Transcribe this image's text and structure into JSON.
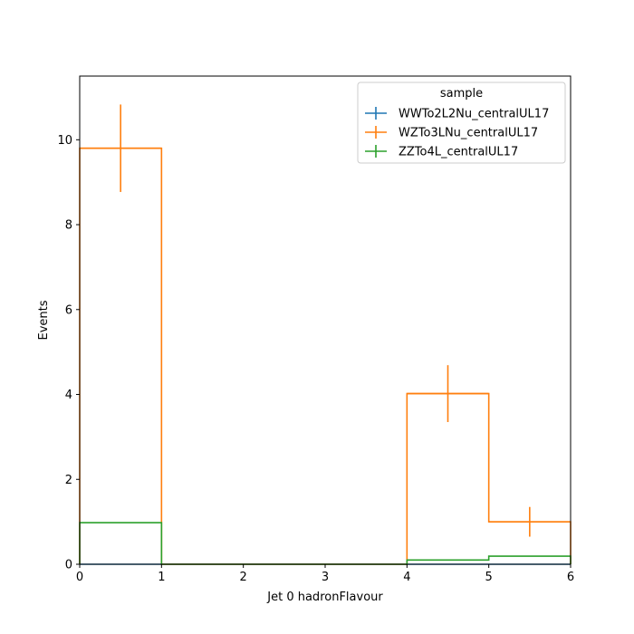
{
  "chart_data": {
    "type": "histogram",
    "title": "",
    "xlabel": "Jet 0 hadronFlavour",
    "ylabel": "Events",
    "xlim": [
      0,
      6
    ],
    "ylim": [
      0,
      11.5
    ],
    "xticks": [
      0,
      1,
      2,
      3,
      4,
      5,
      6
    ],
    "yticks": [
      0,
      2,
      4,
      6,
      8,
      10
    ],
    "bin_edges": [
      0,
      1,
      2,
      3,
      4,
      5,
      6
    ],
    "grid": false,
    "legend": {
      "title": "sample",
      "placement": "top-right"
    },
    "series": [
      {
        "name": "WWTo2L2Nu_centralUL17",
        "color": "#1f77b4",
        "values": [
          0,
          0,
          0,
          0,
          0,
          0
        ],
        "errors": [
          0,
          0,
          0,
          0,
          0,
          0
        ]
      },
      {
        "name": "WZTo3LNu_centralUL17",
        "color": "#ff7f0e",
        "values": [
          9.8,
          0,
          0,
          0,
          4.02,
          1.0
        ],
        "errors": [
          1.03,
          0,
          0,
          0,
          0.67,
          0.35
        ]
      },
      {
        "name": "ZZTo4L_centralUL17",
        "color": "#2ca02c",
        "values": [
          0.98,
          0,
          0,
          0,
          0.1,
          0.19
        ],
        "errors": [
          0,
          0,
          0,
          0,
          0,
          0
        ]
      }
    ]
  }
}
